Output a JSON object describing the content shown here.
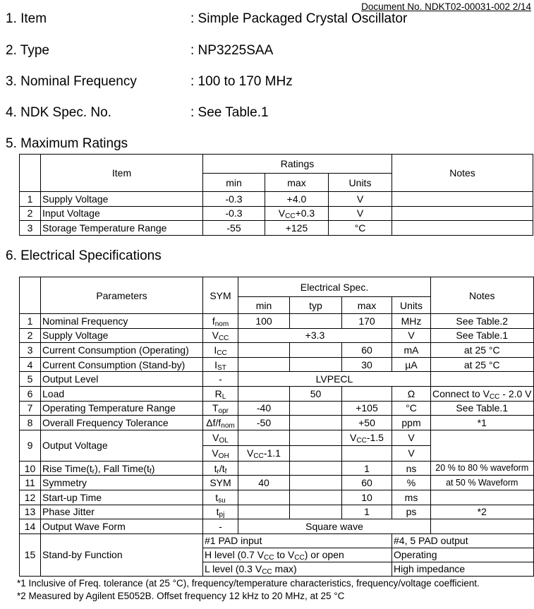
{
  "document_no": "Document No. NDKT02-00031-002 2/14",
  "items": [
    {
      "label": "1. Item",
      "value": ": Simple Packaged Crystal Oscillator"
    },
    {
      "label": "2. Type",
      "value": ": NP3225SAA"
    },
    {
      "label": "3. Nominal Frequency",
      "value": ": 100 to 170 MHz"
    },
    {
      "label": "4. NDK Spec. No.",
      "value": ": See Table.1"
    }
  ],
  "ratings": {
    "title": "5. Maximum Ratings",
    "headers": {
      "item": "Item",
      "ratings": "Ratings",
      "min": "min",
      "max": "max",
      "units": "Units",
      "notes": "Notes"
    },
    "rows": [
      {
        "no": "1",
        "item": [
          "Supply Voltage"
        ],
        "min": [
          "-0.3"
        ],
        "max": [
          "+4.0"
        ],
        "units": [
          "V"
        ],
        "notes": [
          ""
        ]
      },
      {
        "no": "2",
        "item": [
          "Input Voltage"
        ],
        "min": [
          "-0.3"
        ],
        "max": [
          "V",
          "CC",
          "+0.3"
        ],
        "units": [
          "V"
        ],
        "notes": [
          ""
        ]
      },
      {
        "no": "3",
        "item": [
          "Storage Temperature Range"
        ],
        "min": [
          "-55"
        ],
        "max": [
          "+125"
        ],
        "units": [
          "°C"
        ],
        "notes": [
          ""
        ]
      }
    ]
  },
  "spec": {
    "title": "6. Electrical Specifications",
    "headers": {
      "parameters": "Parameters",
      "sym": "SYM",
      "espec": "Electrical Spec.",
      "min": "min",
      "typ": "typ",
      "max": "max",
      "units": "Units",
      "notes": "Notes"
    },
    "rows": [
      {
        "no": "1",
        "param": [
          "Nominal Frequency"
        ],
        "sym": [
          "f",
          "nom"
        ],
        "min": [
          "100"
        ],
        "typ": [
          ""
        ],
        "max": [
          "170"
        ],
        "units": [
          "MHz"
        ],
        "notes": [
          "See Table.2"
        ]
      },
      {
        "no": "2",
        "param": [
          "Supply Voltage"
        ],
        "sym": [
          "V",
          "CC"
        ],
        "span3": [
          "+3.3"
        ],
        "units": [
          "V"
        ],
        "notes": [
          "See Table.1"
        ]
      },
      {
        "no": "3",
        "param": [
          "Current Consumption (Operating)"
        ],
        "sym": [
          "I",
          "CC"
        ],
        "min": [
          ""
        ],
        "typ": [
          ""
        ],
        "max": [
          "60"
        ],
        "units": [
          "mA"
        ],
        "notes": [
          "at 25 °C"
        ]
      },
      {
        "no": "4",
        "param": [
          "Current Consumption (Stand-by)"
        ],
        "sym": [
          "I",
          "ST"
        ],
        "min": [
          ""
        ],
        "typ": [
          ""
        ],
        "max": [
          "30"
        ],
        "units": [
          "µA"
        ],
        "notes": [
          "at 25 °C"
        ]
      },
      {
        "no": "5",
        "param": [
          "Output Level"
        ],
        "sym": [
          "-"
        ],
        "span4": [
          "LVPECL"
        ],
        "notes": [
          ""
        ]
      },
      {
        "no": "6",
        "param": [
          "Load"
        ],
        "sym": [
          "R",
          "L"
        ],
        "min": [
          ""
        ],
        "typ": [
          "50"
        ],
        "max": [
          ""
        ],
        "units": [
          "Ω"
        ],
        "notes": [
          "Connect to V",
          "CC",
          " - 2.0 V"
        ]
      },
      {
        "no": "7",
        "param": [
          "Operating Temperature Range"
        ],
        "sym": [
          "T",
          "opr"
        ],
        "min": [
          "-40"
        ],
        "typ": [
          ""
        ],
        "max": [
          "+105"
        ],
        "units": [
          "°C"
        ],
        "notes": [
          "See Table.1"
        ]
      },
      {
        "no": "8",
        "param": [
          "Overall Frequency Tolerance"
        ],
        "sym": [
          "Δf/f",
          "nom"
        ],
        "min": [
          "-50"
        ],
        "typ": [
          ""
        ],
        "max": [
          "+50"
        ],
        "units": [
          "ppm"
        ],
        "notes": [
          "*1"
        ]
      },
      {
        "no": "9",
        "param": [
          "Output Voltage"
        ],
        "notes": [
          ""
        ],
        "sub": [
          {
            "sym": [
              "V",
              "OL"
            ],
            "min": [
              ""
            ],
            "typ": [
              ""
            ],
            "max": [
              "V",
              "CC",
              "-1.5"
            ],
            "units": [
              "V"
            ]
          },
          {
            "sym": [
              "V",
              "OH"
            ],
            "min": [
              "V",
              "CC",
              "-1.1"
            ],
            "typ": [
              ""
            ],
            "max": [
              ""
            ],
            "units": [
              "V"
            ]
          }
        ]
      },
      {
        "no": "10",
        "param": [
          "Rise Time(t",
          "r",
          "), Fall Time(t",
          "f",
          ")"
        ],
        "sym": [
          "t",
          "r",
          "/t",
          "f"
        ],
        "min": [
          ""
        ],
        "typ": [
          ""
        ],
        "max": [
          "1"
        ],
        "units": [
          "ns"
        ],
        "notes": [
          "20 % to 80 % waveform"
        ]
      },
      {
        "no": "11",
        "param": [
          "Symmetry"
        ],
        "sym": [
          "SYM"
        ],
        "min": [
          "40"
        ],
        "typ": [
          ""
        ],
        "max": [
          "60"
        ],
        "units": [
          "%"
        ],
        "notes": [
          "at 50 % Waveform"
        ]
      },
      {
        "no": "12",
        "param": [
          "Start-up Time"
        ],
        "sym": [
          "t",
          "su"
        ],
        "min": [
          ""
        ],
        "typ": [
          ""
        ],
        "max": [
          "10"
        ],
        "units": [
          "ms"
        ],
        "notes": [
          ""
        ]
      },
      {
        "no": "13",
        "param": [
          "Phase Jitter"
        ],
        "sym": [
          "t",
          "pj"
        ],
        "min": [
          ""
        ],
        "typ": [
          ""
        ],
        "max": [
          "1"
        ],
        "units": [
          "ps"
        ],
        "notes": [
          "*2"
        ]
      },
      {
        "no": "14",
        "param": [
          "Output Wave Form"
        ],
        "sym": [
          "-"
        ],
        "span4": [
          "Square wave"
        ],
        "notes": [
          ""
        ]
      },
      {
        "no": "15",
        "param": [
          "Stand-by Function"
        ],
        "standby": [
          {
            "input": [
              "#1 PAD input"
            ],
            "output": [
              "#4, 5 PAD output"
            ]
          },
          {
            "input": [
              "H level (0.7 V",
              "CC",
              " to V",
              "CC",
              ") or open"
            ],
            "output": [
              "Operating"
            ]
          },
          {
            "input": [
              "L level (0.3 V",
              "CC",
              " max)"
            ],
            "output": [
              "High impedance"
            ]
          }
        ]
      }
    ]
  },
  "footnotes": [
    "*1 Inclusive of Freq. tolerance (at 25 °C), frequency/temperature characteristics, frequency/voltage coefficient.",
    "*2 Measured by Agilent E5052B. Offset frequency 12 kHz to 20 MHz, at 25 °C"
  ]
}
